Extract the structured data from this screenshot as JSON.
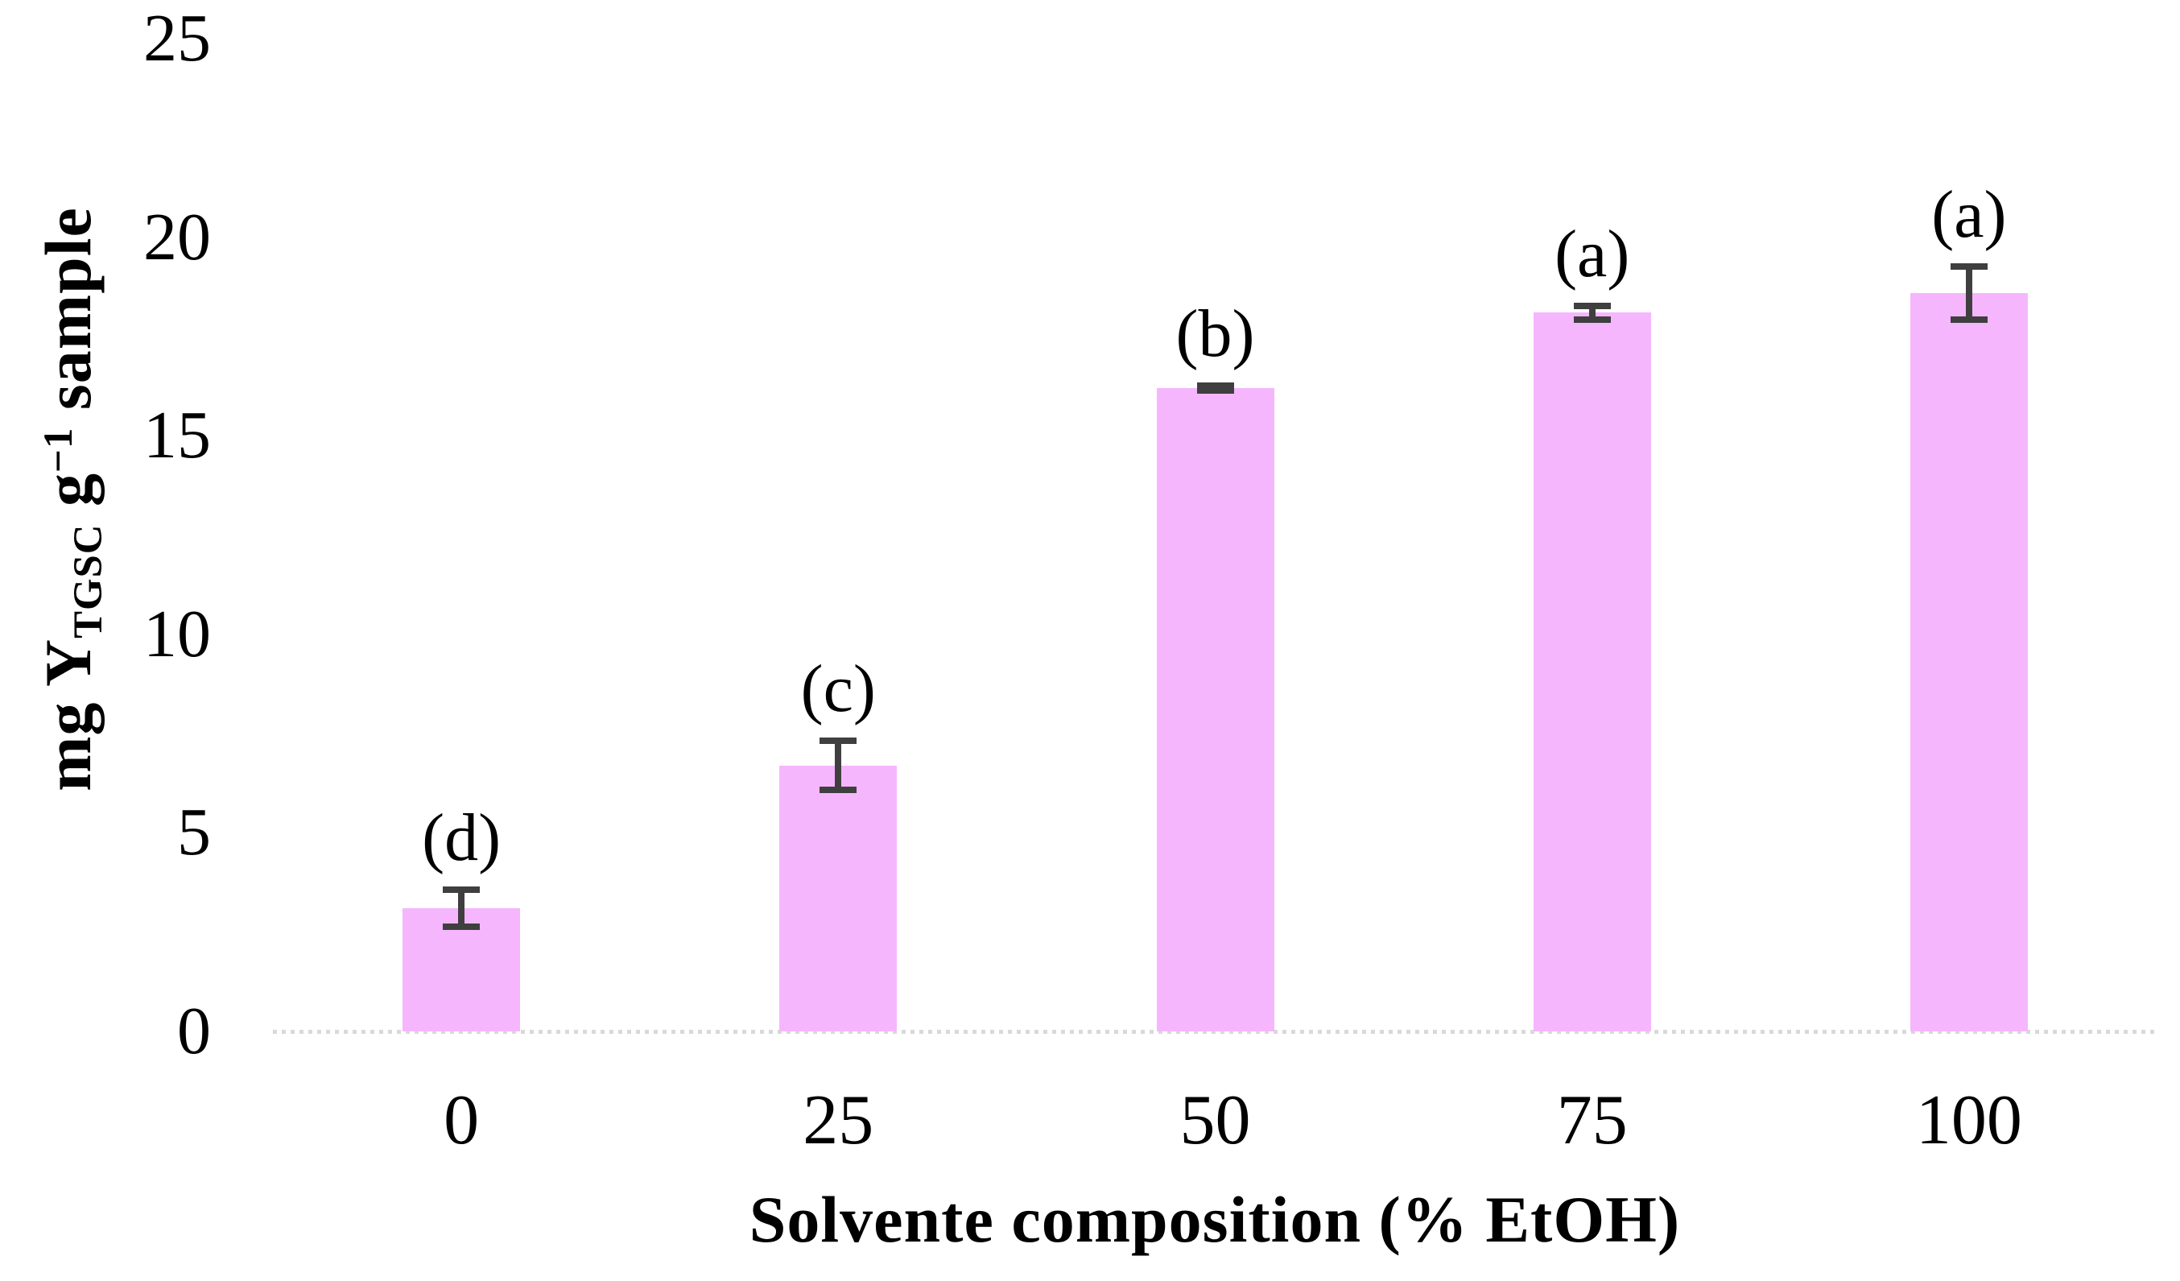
{
  "figure": {
    "background_color": "#ffffff",
    "text_color": "#000000"
  },
  "chart_data": {
    "type": "bar",
    "title": "",
    "xlabel": "Solvente composition (% EtOH)",
    "ylabel": "mg Y_TGSC g^-1 sample",
    "ylabel_parts": {
      "prefix": "mg Y",
      "subscript": "TGSC",
      "mid": " g",
      "superscript": "−1",
      "suffix": " sample"
    },
    "categories": [
      "0",
      "25",
      "50",
      "75",
      "100"
    ],
    "values": [
      3.1,
      6.7,
      16.2,
      18.1,
      18.6
    ],
    "errors": [
      0.55,
      0.7,
      0.15,
      0.25,
      0.75
    ],
    "significance_letters": [
      "(d)",
      "(c)",
      "(b)",
      "(a)",
      "(a)"
    ],
    "ylim": [
      0,
      25
    ],
    "yticks": [
      25,
      20,
      15,
      10,
      5,
      0
    ],
    "grid": "off",
    "legend": "none",
    "bar_color": "#f6b6fd",
    "error_bar_color": "#3f3f3f",
    "axis_line_color": "#d9d9d9"
  }
}
